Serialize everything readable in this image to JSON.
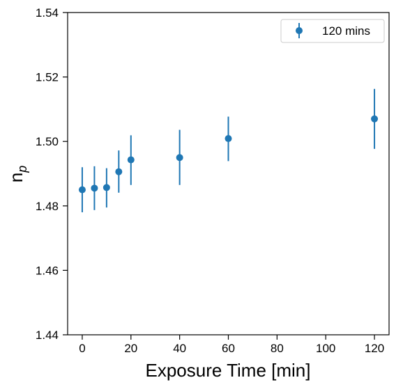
{
  "chart_data": {
    "type": "scatter",
    "title": "",
    "xlabel": "Exposure Time [min]",
    "ylabel_main": "n",
    "ylabel_sub": "p",
    "xlim": [
      -6,
      126
    ],
    "ylim": [
      1.44,
      1.54
    ],
    "xticks": [
      0,
      20,
      40,
      60,
      80,
      100,
      120
    ],
    "yticks": [
      1.44,
      1.46,
      1.48,
      1.5,
      1.52,
      1.54
    ],
    "ytick_labels": [
      "1.44",
      "1.46",
      "1.48",
      "1.50",
      "1.52",
      "1.54"
    ],
    "grid": false,
    "legend_position": "top-right",
    "series": [
      {
        "name": "120 mins",
        "color": "#1f77b4",
        "marker": "circle",
        "error_bars": true,
        "x": [
          0,
          5,
          10,
          15,
          20,
          40,
          60,
          120
        ],
        "y": [
          1.485,
          1.4855,
          1.4857,
          1.4906,
          1.4943,
          1.495,
          1.5009,
          1.507
        ],
        "y_err_lower": [
          0.007,
          0.0068,
          0.0062,
          0.0065,
          0.0078,
          0.0085,
          0.007,
          0.0093
        ],
        "y_err_upper": [
          0.007,
          0.0068,
          0.006,
          0.0066,
          0.0076,
          0.0086,
          0.0068,
          0.0093
        ]
      }
    ]
  }
}
